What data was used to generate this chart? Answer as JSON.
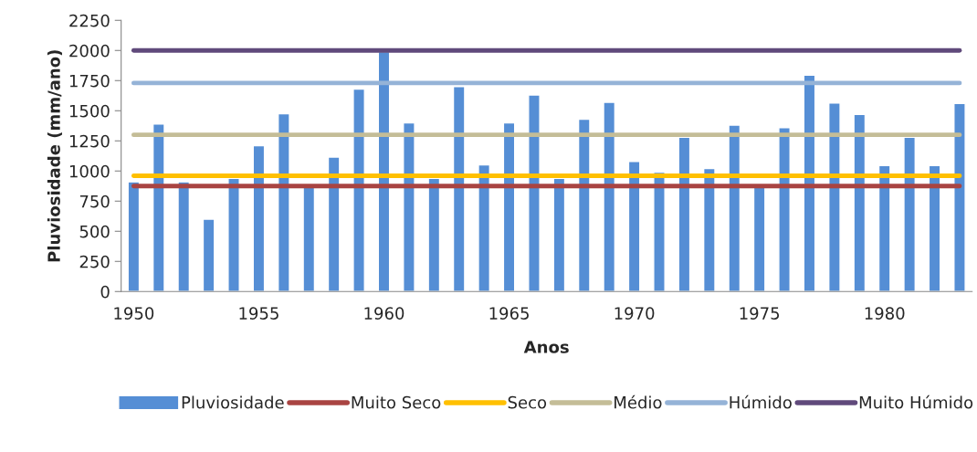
{
  "chart_data": {
    "type": "bar",
    "xlabel": "Anos",
    "ylabel": "Pluviosidade (mm/ano)",
    "categories": [
      "1950",
      null,
      null,
      null,
      null,
      "1955",
      null,
      null,
      null,
      null,
      "1960",
      null,
      null,
      null,
      null,
      "1965",
      null,
      null,
      null,
      null,
      "1970",
      null,
      null,
      null,
      null,
      "1975",
      null,
      null,
      null,
      null,
      "1980",
      null,
      null,
      null
    ],
    "series": [
      {
        "name": "Pluviosidade",
        "color": "#558ed5",
        "values": [
          910,
          1390,
          910,
          600,
          940,
          1210,
          1475,
          870,
          1115,
          1680,
          1990,
          1400,
          940,
          1700,
          1050,
          1400,
          1630,
          940,
          1430,
          1570,
          1080,
          990,
          1280,
          1020,
          1380,
          870,
          1360,
          1795,
          1565,
          1470,
          1045,
          1280,
          1045,
          1560
        ]
      },
      {
        "name": "Muito Seco",
        "type": "line",
        "color": "#a94442",
        "values": [
          875,
          875,
          875,
          875,
          875,
          875,
          875,
          875,
          875,
          875,
          875,
          875,
          875,
          875,
          875,
          875,
          875,
          875,
          875,
          875,
          875,
          875,
          875,
          875,
          875,
          875,
          875,
          875,
          875,
          875,
          875,
          875,
          875,
          875
        ]
      },
      {
        "name": "Seco",
        "type": "line",
        "color": "#ffc000",
        "values": [
          960,
          960,
          960,
          960,
          960,
          960,
          960,
          960,
          960,
          960,
          960,
          960,
          960,
          960,
          960,
          960,
          960,
          960,
          960,
          960,
          960,
          960,
          960,
          960,
          960,
          960,
          960,
          960,
          960,
          960,
          960,
          960,
          960,
          960
        ]
      },
      {
        "name": "Médio",
        "type": "line",
        "color": "#c4bd97",
        "values": [
          1300,
          1300,
          1300,
          1300,
          1300,
          1300,
          1300,
          1300,
          1300,
          1300,
          1300,
          1300,
          1300,
          1300,
          1300,
          1300,
          1300,
          1300,
          1300,
          1300,
          1300,
          1300,
          1300,
          1300,
          1300,
          1300,
          1300,
          1300,
          1300,
          1300,
          1300,
          1300,
          1300,
          1300
        ]
      },
      {
        "name": "Húmido",
        "type": "line",
        "color": "#95b3d7",
        "values": [
          1730,
          1730,
          1730,
          1730,
          1730,
          1730,
          1730,
          1730,
          1730,
          1730,
          1730,
          1730,
          1730,
          1730,
          1730,
          1730,
          1730,
          1730,
          1730,
          1730,
          1730,
          1730,
          1730,
          1730,
          1730,
          1730,
          1730,
          1730,
          1730,
          1730,
          1730,
          1730,
          1730,
          1730
        ]
      },
      {
        "name": "Muito Húmido",
        "type": "line",
        "color": "#604a7b",
        "values": [
          2000,
          2000,
          2000,
          2000,
          2000,
          2000,
          2000,
          2000,
          2000,
          2000,
          2000,
          2000,
          2000,
          2000,
          2000,
          2000,
          2000,
          2000,
          2000,
          2000,
          2000,
          2000,
          2000,
          2000,
          2000,
          2000,
          2000,
          2000,
          2000,
          2000,
          2000,
          2000,
          2000,
          2000
        ]
      }
    ],
    "ylim": [
      0,
      2250
    ],
    "yticks": [
      0,
      250,
      500,
      750,
      1000,
      1250,
      1500,
      1750,
      2000,
      2250
    ],
    "grid": false,
    "legend": "bottom"
  }
}
